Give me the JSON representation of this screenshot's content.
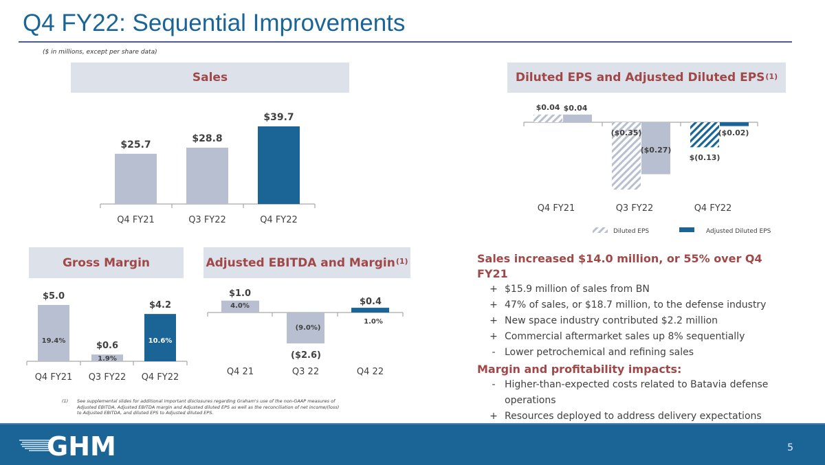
{
  "slide": {
    "title": "Q4 FY22: Sequential Improvements",
    "units_note": "($ in millions, except per share data)",
    "page_number": "5",
    "logo_text": "GHM"
  },
  "colors": {
    "title_blue": "#1a6496",
    "accent_red": "#a04848",
    "bar_gray": "#b8bfd0",
    "bar_blue": "#1a6496",
    "panel_bg": "#dde1e9"
  },
  "panels": {
    "sales": {
      "title": "Sales"
    },
    "eps": {
      "title": "Diluted EPS and Adjusted Diluted EPS",
      "sup": "(1)"
    },
    "gross_margin": {
      "title": "Gross Margin"
    },
    "ebitda": {
      "title": "Adjusted EBITDA and Margin",
      "sup": "(1)"
    }
  },
  "chart_data": [
    {
      "id": "sales",
      "type": "bar",
      "title": "Sales",
      "categories": [
        "Q4 FY21",
        "Q3 FY22",
        "Q4 FY22"
      ],
      "values": [
        25.7,
        28.8,
        39.7
      ],
      "labels": [
        "$25.7",
        "$28.8",
        "$39.7"
      ],
      "highlight": [
        false,
        false,
        true
      ],
      "xlabel": "",
      "ylabel": "",
      "grid": false
    },
    {
      "id": "eps",
      "type": "bar",
      "title": "Diluted EPS and Adjusted Diluted EPS",
      "categories": [
        "Q4 FY21",
        "Q3 FY22",
        "Q4 FY22"
      ],
      "series": [
        {
          "name": "Diluted EPS",
          "values": [
            0.04,
            -0.35,
            -0.13
          ],
          "labels": [
            "$0.04",
            "($0.35)",
            "$(0.13)"
          ],
          "pattern": "hatched"
        },
        {
          "name": "Adjusted Diluted EPS",
          "values": [
            0.04,
            -0.27,
            -0.02
          ],
          "labels": [
            "$0.04",
            "($0.27)",
            "($0.02)"
          ],
          "pattern": "solid"
        }
      ],
      "highlight": [
        false,
        false,
        true
      ],
      "legend": [
        "Diluted EPS",
        "Adjusted Diluted EPS"
      ],
      "legend_position": "bottom",
      "grid": false
    },
    {
      "id": "gross_margin",
      "type": "bar",
      "title": "Gross Margin",
      "categories": [
        "Q4 FY21",
        "Q3 FY22",
        "Q4 FY22"
      ],
      "values": [
        5.0,
        0.6,
        4.2
      ],
      "labels": [
        "$5.0",
        "$0.6",
        "$4.2"
      ],
      "margins": [
        "19.4%",
        "1.9%",
        "10.6%"
      ],
      "highlight": [
        false,
        false,
        true
      ],
      "grid": false
    },
    {
      "id": "ebitda",
      "type": "bar",
      "title": "Adjusted EBITDA and Margin",
      "categories": [
        "Q4 21",
        "Q3 22",
        "Q4 22"
      ],
      "values": [
        1.0,
        -2.6,
        0.4
      ],
      "labels": [
        "$1.0",
        "($2.6)",
        "$0.4"
      ],
      "margins": [
        "4.0%",
        "(9.0%)",
        "1.0%"
      ],
      "highlight": [
        false,
        false,
        true
      ],
      "grid": false
    }
  ],
  "commentary": {
    "sales_heading": "Sales increased $14.0 million, or 55% over Q4 FY21",
    "sales_items": [
      {
        "mark": "+",
        "text": "$15.9 million of sales from BN"
      },
      {
        "mark": "+",
        "text": "47% of sales, or $18.7 million, to the defense industry"
      },
      {
        "mark": "+",
        "text": "New space industry contributed $2.2 million"
      },
      {
        "mark": "+",
        "text": "Commercial aftermarket sales up 8% sequentially"
      },
      {
        "mark": "-",
        "text": "Lower petrochemical and refining sales"
      }
    ],
    "margin_heading": "Margin and profitability impacts:",
    "margin_items": [
      {
        "mark": "-",
        "text": "Higher-than-expected costs related to Batavia defense operations"
      },
      {
        "mark": "+",
        "text": "Resources deployed to address delivery expectations"
      }
    ]
  },
  "footnote": {
    "number": "(1)",
    "text": "See supplemental slides for additional important disclosures regarding Graham's use of the non-GAAP measures of Adjusted EBITDA, Adjusted EBITDA margin and Adjusted diluted EPS as well as the reconciliation of net income/(loss) to Adjusted EBITDA, and diluted EPS to Adjusted diluted EPS."
  }
}
